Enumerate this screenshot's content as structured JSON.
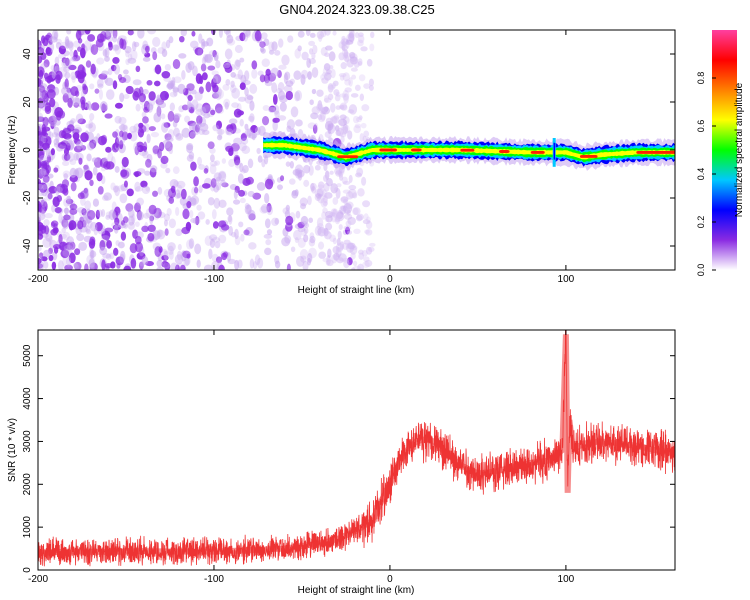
{
  "title": "GN04.2024.323.09.38.C25",
  "chart_data": [
    {
      "type": "heatmap",
      "xlabel": "Height of straight line (km)",
      "ylabel": "Frequency (Hz)",
      "xlim": [
        -200,
        162
      ],
      "ylim": [
        -50,
        50
      ],
      "x_ticks": [
        -200,
        -100,
        0,
        100
      ],
      "y_ticks": [
        -40,
        -20,
        0,
        20,
        40
      ],
      "colorbar": {
        "label": "Normalized spectral amplitude",
        "range": [
          0,
          1
        ],
        "ticks": [
          "0.0",
          "0.2",
          "0.4",
          "0.6",
          "0.8"
        ],
        "colormap": [
          "#ffffff",
          "#8a2be2",
          "#0000ff",
          "#00c8ff",
          "#00ff00",
          "#ffff00",
          "#ff8000",
          "#ff0000",
          "#ff3fa0"
        ]
      },
      "features": {
        "noise_region_x": [
          -200,
          -30
        ],
        "ridge": {
          "x_start": -72,
          "x_end": 162,
          "frequency": [
            [
              -72,
              2
            ],
            [
              -60,
              2
            ],
            [
              -40,
              0
            ],
            [
              -25,
              -3
            ],
            [
              -10,
              0
            ],
            [
              0,
              0
            ],
            [
              40,
              0
            ],
            [
              80,
              -1
            ],
            [
              92,
              -1
            ],
            [
              100,
              -1
            ],
            [
              110,
              -3
            ],
            [
              120,
              -2
            ],
            [
              140,
              -1
            ],
            [
              162,
              -1
            ]
          ]
        }
      }
    },
    {
      "type": "line",
      "xlabel": "Height of straight line (km)",
      "ylabel": "SNR (10 * v/v)",
      "xlim": [
        -200,
        162
      ],
      "ylim": [
        0,
        5600
      ],
      "x_ticks": [
        -200,
        -100,
        0,
        100
      ],
      "y_ticks": [
        0,
        1000,
        2000,
        3000,
        4000,
        5000
      ],
      "color": "#ee3333",
      "series": [
        {
          "x": [
            -200,
            -180,
            -160,
            -140,
            -120,
            -100,
            -80,
            -60,
            -50,
            -40,
            -30,
            -20,
            -10,
            -5,
            0,
            5,
            10,
            15,
            20,
            25,
            30,
            40,
            50,
            60,
            70,
            80,
            90,
            98,
            100,
            101,
            102,
            104,
            110,
            120,
            130,
            140,
            150,
            160,
            162
          ],
          "y": [
            400,
            430,
            420,
            440,
            430,
            430,
            460,
            500,
            560,
            620,
            720,
            900,
            1150,
            1600,
            2000,
            2500,
            2800,
            3000,
            3050,
            3000,
            2800,
            2450,
            2250,
            2300,
            2400,
            2500,
            2550,
            2800,
            5500,
            1800,
            3500,
            2800,
            2950,
            3000,
            2950,
            2900,
            2800,
            2750,
            2700
          ]
        }
      ]
    }
  ]
}
